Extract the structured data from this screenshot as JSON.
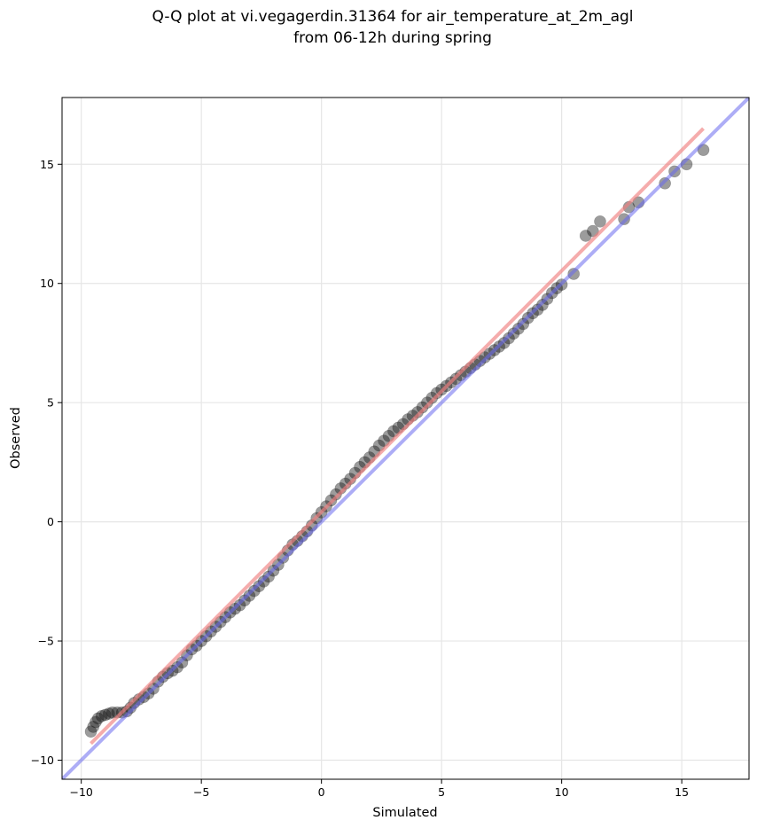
{
  "chart_data": {
    "type": "scatter",
    "title_line1": "Q-Q plot at vi.vegagerdin.31364 for air_temperature_at_2m_agl",
    "title_line2": "from 06-12h during spring",
    "xlabel": "Simulated",
    "ylabel": "Observed",
    "xlim": [
      -10.8,
      17.8
    ],
    "ylim": [
      -10.8,
      17.8
    ],
    "xticks": [
      -10,
      -5,
      0,
      5,
      10,
      15
    ],
    "yticks": [
      -10,
      -5,
      0,
      5,
      10,
      15
    ],
    "xtick_labels": [
      "−10",
      "−5",
      "0",
      "5",
      "10",
      "15"
    ],
    "ytick_labels": [
      "−10",
      "−5",
      "0",
      "5",
      "10",
      "15"
    ],
    "grid": true,
    "series": [
      {
        "kind": "quantile_points",
        "x": [
          -9.6,
          -9.5,
          -9.4,
          -9.3,
          -9.15,
          -9.0,
          -8.85,
          -8.7,
          -8.5,
          -8.3,
          -8.1,
          -7.95,
          -7.8,
          -7.6,
          -7.4,
          -7.2,
          -7.0,
          -6.8,
          -6.6,
          -6.4,
          -6.2,
          -6.0,
          -5.8,
          -5.6,
          -5.4,
          -5.2,
          -5.0,
          -4.8,
          -4.6,
          -4.4,
          -4.2,
          -4.0,
          -3.8,
          -3.6,
          -3.4,
          -3.2,
          -3.0,
          -2.8,
          -2.6,
          -2.4,
          -2.2,
          -2.0,
          -1.8,
          -1.6,
          -1.4,
          -1.2,
          -1.0,
          -0.8,
          -0.6,
          -0.4,
          -0.2,
          0.0,
          0.2,
          0.4,
          0.6,
          0.8,
          1.0,
          1.2,
          1.4,
          1.6,
          1.8,
          2.0,
          2.2,
          2.4,
          2.6,
          2.8,
          3.0,
          3.2,
          3.4,
          3.6,
          3.8,
          4.0,
          4.2,
          4.4,
          4.6,
          4.8,
          5.0,
          5.2,
          5.4,
          5.6,
          5.8,
          6.0,
          6.2,
          6.4,
          6.6,
          6.8,
          7.0,
          7.2,
          7.4,
          7.6,
          7.8,
          8.0,
          8.2,
          8.4,
          8.6,
          8.8,
          9.0,
          9.2,
          9.4,
          9.6,
          9.8,
          10.0,
          10.5,
          11.0,
          11.3,
          11.6,
          12.6,
          12.8,
          13.2,
          14.3,
          14.7,
          15.2,
          15.9
        ],
        "y": [
          -8.8,
          -8.6,
          -8.4,
          -8.25,
          -8.15,
          -8.1,
          -8.05,
          -8.0,
          -8.0,
          -8.0,
          -7.95,
          -7.8,
          -7.6,
          -7.45,
          -7.35,
          -7.2,
          -7.0,
          -6.7,
          -6.5,
          -6.35,
          -6.25,
          -6.1,
          -5.9,
          -5.6,
          -5.35,
          -5.2,
          -5.0,
          -4.8,
          -4.6,
          -4.4,
          -4.2,
          -4.0,
          -3.8,
          -3.65,
          -3.5,
          -3.3,
          -3.1,
          -2.9,
          -2.7,
          -2.5,
          -2.3,
          -2.05,
          -1.8,
          -1.5,
          -1.2,
          -0.95,
          -0.8,
          -0.6,
          -0.4,
          -0.15,
          0.15,
          0.4,
          0.65,
          0.9,
          1.15,
          1.4,
          1.6,
          1.8,
          2.05,
          2.3,
          2.5,
          2.7,
          2.95,
          3.2,
          3.4,
          3.6,
          3.8,
          3.95,
          4.1,
          4.3,
          4.45,
          4.6,
          4.8,
          5.0,
          5.2,
          5.4,
          5.55,
          5.7,
          5.85,
          6.0,
          6.15,
          6.3,
          6.45,
          6.6,
          6.75,
          6.9,
          7.05,
          7.2,
          7.35,
          7.5,
          7.7,
          7.9,
          8.1,
          8.3,
          8.55,
          8.75,
          8.9,
          9.1,
          9.35,
          9.6,
          9.8,
          9.95,
          10.4,
          12.0,
          12.2,
          12.6,
          12.7,
          13.2,
          13.4,
          14.2,
          14.7,
          15.0,
          15.6
        ]
      },
      {
        "kind": "fit_line",
        "color": "#f08080",
        "x": [
          -9.6,
          15.9
        ],
        "y": [
          -9.3,
          16.5
        ]
      },
      {
        "kind": "identity_line",
        "color": "#6a6aee",
        "x": [
          -10.8,
          17.8
        ],
        "y": [
          -10.8,
          17.8
        ]
      }
    ]
  }
}
